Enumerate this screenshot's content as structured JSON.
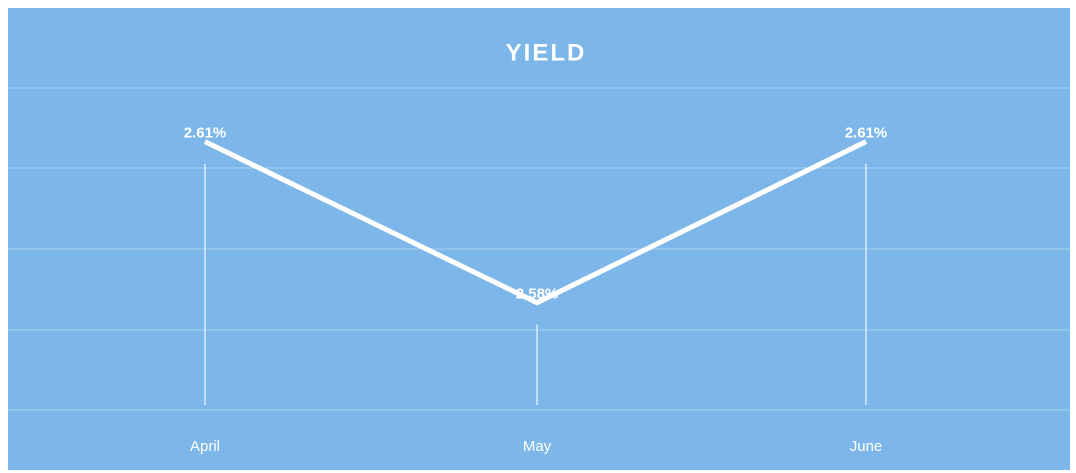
{
  "chart_data": {
    "type": "line",
    "title": "YIELD",
    "categories": [
      "April",
      "May",
      "June"
    ],
    "series": [
      {
        "name": "Yield",
        "color": "#ffffff",
        "values": [
          2.61,
          2.58,
          2.61
        ],
        "value_labels": [
          "2.61%",
          "2.58%",
          "2.61%"
        ]
      }
    ],
    "ylim": [
      2.56,
      2.62
    ],
    "background": "#7db7ea"
  }
}
